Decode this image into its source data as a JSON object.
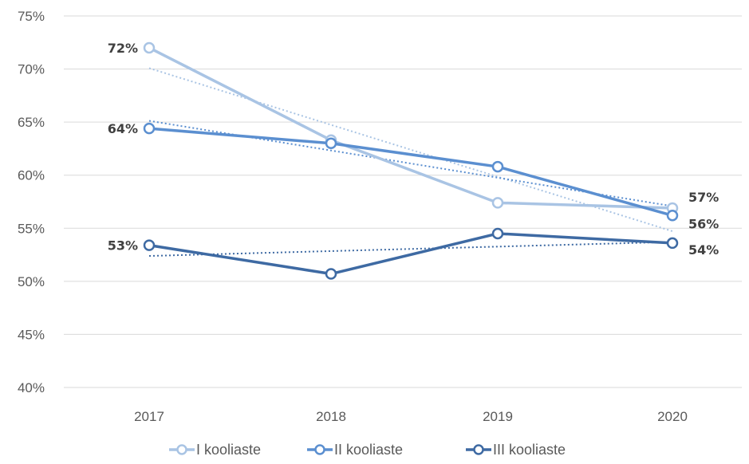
{
  "chart_data": {
    "type": "line",
    "title": "",
    "xlabel": "",
    "ylabel": "",
    "categories": [
      "2017",
      "2018",
      "2019",
      "2020"
    ],
    "ylim": [
      40,
      75
    ],
    "yticks": [
      40,
      45,
      50,
      55,
      60,
      65,
      70,
      75
    ],
    "ytick_labels": [
      "40%",
      "45%",
      "50%",
      "55%",
      "60%",
      "65%",
      "70%",
      "75%"
    ],
    "grid": true,
    "trendlines": true,
    "legend_position": "bottom",
    "series": [
      {
        "name": "I kooliaste",
        "color": "#a9c4e4",
        "values": [
          72,
          63.3,
          57.4,
          56.9
        ],
        "labels": [
          "72%",
          "",
          "",
          "57%"
        ]
      },
      {
        "name": "II kooliaste",
        "color": "#5b8fd0",
        "values": [
          64.4,
          63.0,
          60.8,
          56.2
        ],
        "labels": [
          "64%",
          "",
          "",
          "56%"
        ]
      },
      {
        "name": "III kooliaste",
        "color": "#3e6aa3",
        "values": [
          53.4,
          50.7,
          54.5,
          53.6
        ],
        "labels": [
          "53%",
          "",
          "",
          "54%"
        ]
      }
    ]
  }
}
